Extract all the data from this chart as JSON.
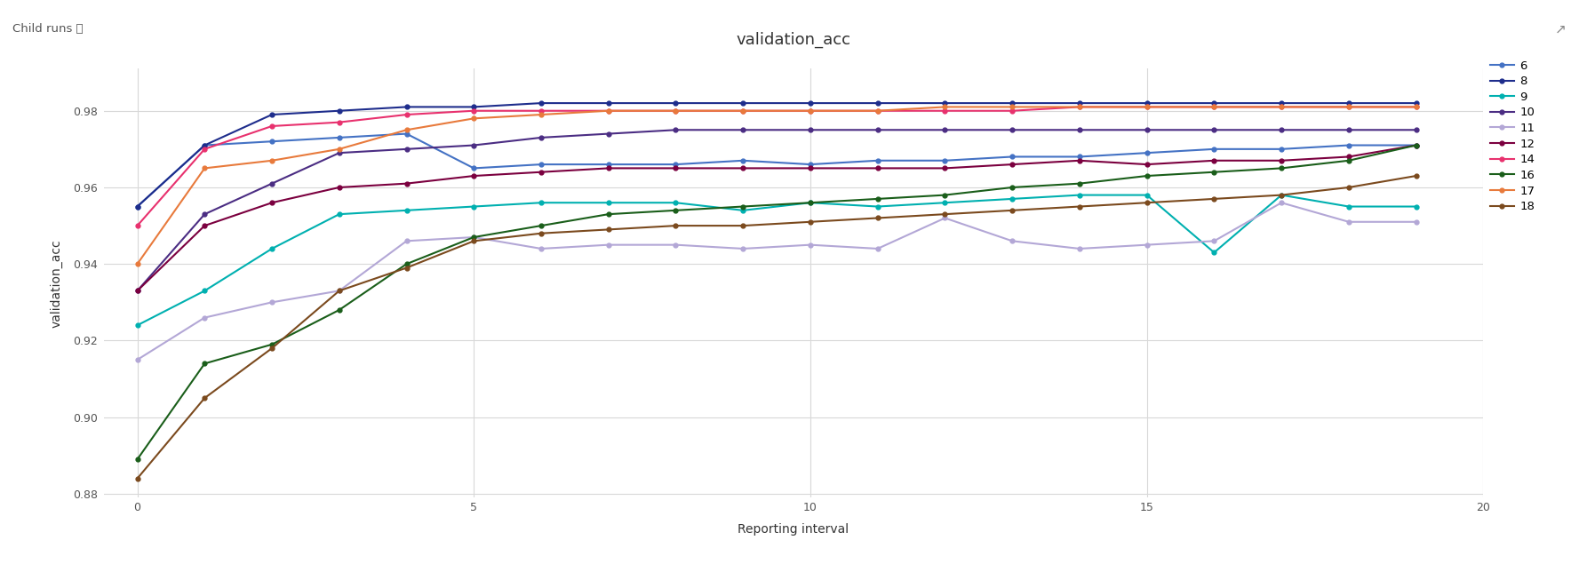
{
  "title": "validation_acc",
  "xlabel": "Reporting interval",
  "ylabel": "validation_acc",
  "xlim": [
    -0.5,
    20
  ],
  "ylim": [
    0.879,
    0.991
  ],
  "yticks": [
    0.88,
    0.9,
    0.92,
    0.94,
    0.96,
    0.98
  ],
  "xticks": [
    0,
    5,
    10,
    15,
    20
  ],
  "background_color": "#ffffff",
  "series": [
    {
      "label": "6",
      "color": "#4472c4",
      "x": [
        0,
        1,
        2,
        3,
        4,
        5,
        6,
        7,
        8,
        9,
        10,
        11,
        12,
        13,
        14,
        15,
        16,
        17,
        18,
        19
      ],
      "y": [
        0.955,
        0.971,
        0.972,
        0.973,
        0.974,
        0.965,
        0.966,
        0.966,
        0.966,
        0.967,
        0.966,
        0.967,
        0.967,
        0.968,
        0.968,
        0.969,
        0.97,
        0.97,
        0.971,
        0.971
      ]
    },
    {
      "label": "8",
      "color": "#1e2d8c",
      "x": [
        0,
        1,
        2,
        3,
        4,
        5,
        6,
        7,
        8,
        9,
        10,
        11,
        12,
        13,
        14,
        15,
        16,
        17,
        18,
        19
      ],
      "y": [
        0.955,
        0.971,
        0.979,
        0.98,
        0.981,
        0.981,
        0.982,
        0.982,
        0.982,
        0.982,
        0.982,
        0.982,
        0.982,
        0.982,
        0.982,
        0.982,
        0.982,
        0.982,
        0.982,
        0.982
      ]
    },
    {
      "label": "9",
      "color": "#00b0b0",
      "x": [
        0,
        1,
        2,
        3,
        4,
        5,
        6,
        7,
        8,
        9,
        10,
        11,
        12,
        13,
        14,
        15,
        16,
        17,
        18,
        19
      ],
      "y": [
        0.924,
        0.933,
        0.944,
        0.953,
        0.954,
        0.955,
        0.956,
        0.956,
        0.956,
        0.954,
        0.956,
        0.955,
        0.956,
        0.957,
        0.958,
        0.958,
        0.943,
        0.958,
        0.955,
        0.955
      ]
    },
    {
      "label": "10",
      "color": "#4b2d83",
      "x": [
        0,
        1,
        2,
        3,
        4,
        5,
        6,
        7,
        8,
        9,
        10,
        11,
        12,
        13,
        14,
        15,
        16,
        17,
        18,
        19
      ],
      "y": [
        0.933,
        0.953,
        0.961,
        0.969,
        0.97,
        0.971,
        0.973,
        0.974,
        0.975,
        0.975,
        0.975,
        0.975,
        0.975,
        0.975,
        0.975,
        0.975,
        0.975,
        0.975,
        0.975,
        0.975
      ]
    },
    {
      "label": "11",
      "color": "#b3a7d6",
      "x": [
        0,
        1,
        2,
        3,
        4,
        5,
        6,
        7,
        8,
        9,
        10,
        11,
        12,
        13,
        14,
        15,
        16,
        17,
        18,
        19
      ],
      "y": [
        0.915,
        0.926,
        0.93,
        0.933,
        0.946,
        0.947,
        0.944,
        0.945,
        0.945,
        0.944,
        0.945,
        0.944,
        0.952,
        0.946,
        0.944,
        0.945,
        0.946,
        0.956,
        0.951,
        0.951
      ]
    },
    {
      "label": "12",
      "color": "#7b003f",
      "x": [
        0,
        1,
        2,
        3,
        4,
        5,
        6,
        7,
        8,
        9,
        10,
        11,
        12,
        13,
        14,
        15,
        16,
        17,
        18,
        19
      ],
      "y": [
        0.933,
        0.95,
        0.956,
        0.96,
        0.961,
        0.963,
        0.964,
        0.965,
        0.965,
        0.965,
        0.965,
        0.965,
        0.965,
        0.966,
        0.967,
        0.966,
        0.967,
        0.967,
        0.968,
        0.971
      ]
    },
    {
      "label": "14",
      "color": "#e8316e",
      "x": [
        0,
        1,
        2,
        3,
        4,
        5,
        6,
        7,
        8,
        9,
        10,
        11,
        12,
        13,
        14,
        15,
        16,
        17,
        18,
        19
      ],
      "y": [
        0.95,
        0.97,
        0.976,
        0.977,
        0.979,
        0.98,
        0.98,
        0.98,
        0.98,
        0.98,
        0.98,
        0.98,
        0.98,
        0.98,
        0.981,
        0.981,
        0.981,
        0.981,
        0.981,
        0.981
      ]
    },
    {
      "label": "16",
      "color": "#1a5e1a",
      "x": [
        0,
        1,
        2,
        3,
        4,
        5,
        6,
        7,
        8,
        9,
        10,
        11,
        12,
        13,
        14,
        15,
        16,
        17,
        18,
        19
      ],
      "y": [
        0.889,
        0.914,
        0.919,
        0.928,
        0.94,
        0.947,
        0.95,
        0.953,
        0.954,
        0.955,
        0.956,
        0.957,
        0.958,
        0.96,
        0.961,
        0.963,
        0.964,
        0.965,
        0.967,
        0.971
      ]
    },
    {
      "label": "17",
      "color": "#e87a3c",
      "x": [
        0,
        1,
        2,
        3,
        4,
        5,
        6,
        7,
        8,
        9,
        10,
        11,
        12,
        13,
        14,
        15,
        16,
        17,
        18,
        19
      ],
      "y": [
        0.94,
        0.965,
        0.967,
        0.97,
        0.975,
        0.978,
        0.979,
        0.98,
        0.98,
        0.98,
        0.98,
        0.98,
        0.981,
        0.981,
        0.981,
        0.981,
        0.981,
        0.981,
        0.981,
        0.981
      ]
    },
    {
      "label": "18",
      "color": "#7b4a1e",
      "x": [
        0,
        1,
        2,
        3,
        4,
        5,
        6,
        7,
        8,
        9,
        10,
        11,
        12,
        13,
        14,
        15,
        16,
        17,
        18,
        19
      ],
      "y": [
        0.884,
        0.905,
        0.918,
        0.933,
        0.939,
        0.946,
        0.948,
        0.949,
        0.95,
        0.95,
        0.951,
        0.952,
        0.953,
        0.954,
        0.955,
        0.956,
        0.957,
        0.958,
        0.96,
        0.963
      ]
    }
  ],
  "header_text": "Child runs ⓘ",
  "title_fontsize": 13,
  "axis_label_fontsize": 10,
  "tick_fontsize": 9,
  "legend_fontsize": 9.5
}
